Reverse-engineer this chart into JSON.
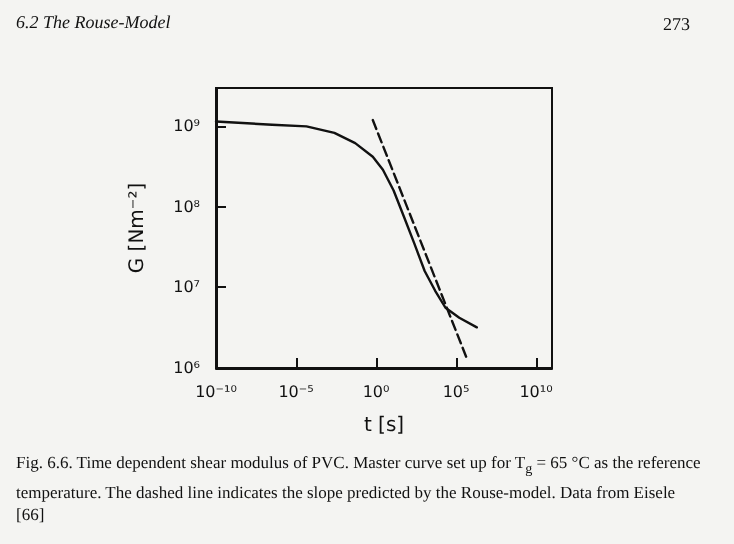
{
  "chart_data": {
    "type": "line",
    "xlabel": "t [s]",
    "ylabel": "G [Nm⁻²]",
    "log": "xy",
    "grid": false,
    "marker": "none",
    "xlim": [
      1e-10,
      100000000000.0
    ],
    "ylim": [
      1000000.0,
      3000000000.0
    ],
    "xticks": [
      {
        "value": 1e-10,
        "label": "10⁻¹⁰"
      },
      {
        "value": 1e-05,
        "label": "10⁻⁵"
      },
      {
        "value": 1,
        "label": "10⁰"
      },
      {
        "value": 100000.0,
        "label": "10⁵"
      },
      {
        "value": 10000000000.0,
        "label": "10¹⁰"
      }
    ],
    "yticks": [
      {
        "value": 1000000.0,
        "label": "10⁶"
      },
      {
        "value": 10000000.0,
        "label": "10⁷"
      },
      {
        "value": 100000000.0,
        "label": "10⁸"
      },
      {
        "value": 1000000000.0,
        "label": "10⁹"
      }
    ],
    "series": [
      {
        "color": "#111111",
        "line_style": "solid",
        "x": [
          1e-10,
          3.2e-07,
          4.5e-05,
          0.0025,
          0.05,
          0.63,
          2.7,
          12.6,
          55,
          250,
          1100,
          5000,
          22000,
          160000.0,
          2000000.0
        ],
        "values": [
          1150000000.0,
          1050000000.0,
          1000000000.0,
          830000000.0,
          620000000.0,
          420000000.0,
          290000000.0,
          160000000.0,
          76000000.0,
          35000000.0,
          16000000.0,
          9100000.0,
          5600000.0,
          4200000.0,
          3200000.0
        ]
      },
      {
        "color": "#111111",
        "line_style": "dashed",
        "x": [
          0.63,
          450000.0
        ],
        "values": [
          1200000000.0,
          1350000.0
        ]
      }
    ],
    "annotations": [
      "6.2 The Rouse-Model",
      "273",
      "Fig. 6.6. Time dependent shear modulus of PVC. Master curve set up for T$_{g}$ = 65 °C as the reference temperature. The dashed line indicates the slope predicted by the Rouse-model. Data from Eisele [66]"
    ]
  }
}
